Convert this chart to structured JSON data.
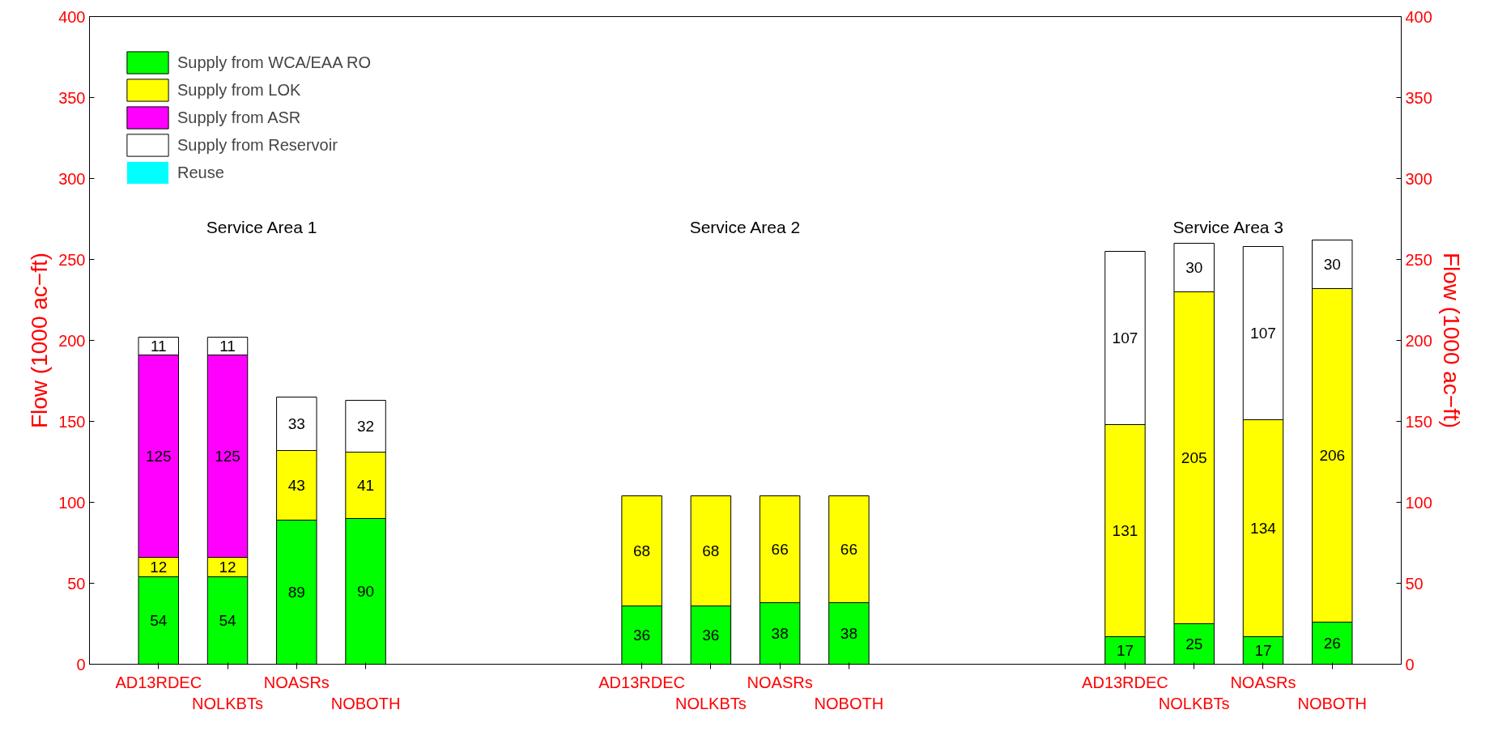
{
  "chart_data": {
    "type": "bar",
    "stacked": true,
    "categories": [
      "AD13RDEC",
      "NOLKBTs",
      "NOASRs",
      "NOBOTH",
      null,
      null,
      null,
      "AD13RDEC",
      "NOLKBTs",
      "NOASRs",
      "NOBOTH",
      null,
      null,
      null,
      "AD13RDEC",
      "NOLKBTs",
      "NOASRs",
      "NOBOTH"
    ],
    "series": [
      {
        "name": "Supply from WCA/EAA RO",
        "color": "#00ff00",
        "values": [
          54,
          54,
          89,
          90,
          null,
          null,
          null,
          36,
          36,
          38,
          38,
          null,
          null,
          null,
          17,
          25,
          17,
          26
        ],
        "value_labels": [
          "54",
          "54",
          "89",
          "90",
          null,
          null,
          null,
          "36",
          "36",
          "38",
          "38",
          null,
          null,
          null,
          "17",
          "25",
          "17",
          "26"
        ]
      },
      {
        "name": "Supply from LOK",
        "color": "#ffff00",
        "values": [
          12,
          12,
          43,
          41,
          null,
          null,
          null,
          68,
          68,
          66,
          66,
          null,
          null,
          null,
          131,
          205,
          134,
          206
        ],
        "value_labels": [
          "12",
          "12",
          "43",
          "41",
          null,
          null,
          null,
          "68",
          "68",
          "66",
          "66",
          null,
          null,
          null,
          "131",
          "205",
          "134",
          "206"
        ]
      },
      {
        "name": "Supply from ASR",
        "color": "#ff00ff",
        "values": [
          125,
          125,
          0,
          0,
          null,
          null,
          null,
          0,
          0,
          0,
          0,
          null,
          null,
          null,
          0,
          0,
          0,
          0
        ],
        "value_labels": [
          "125",
          "125",
          null,
          null,
          null,
          null,
          null,
          null,
          null,
          null,
          null,
          null,
          null,
          null,
          null,
          null,
          null,
          null
        ]
      },
      {
        "name": "Supply from Reservoir",
        "color": "#ffffff",
        "values": [
          11,
          11,
          33,
          32,
          null,
          null,
          null,
          0,
          0,
          0,
          0,
          null,
          null,
          null,
          107,
          30,
          107,
          30
        ],
        "value_labels": [
          "11",
          "11",
          "33",
          "32",
          null,
          null,
          null,
          null,
          null,
          null,
          null,
          null,
          null,
          null,
          "107",
          "30",
          "107",
          "30"
        ]
      },
      {
        "name": "Reuse",
        "color": "#00ffff",
        "values": [
          0,
          0,
          0,
          0,
          null,
          null,
          null,
          0,
          0,
          0,
          0,
          null,
          null,
          null,
          0,
          0,
          0,
          0
        ]
      }
    ],
    "annotations": [
      "Service Area 1",
      "Service Area 2",
      "Service Area 3"
    ],
    "ylabel": "Flow (1000 ac−ft)",
    "y2label": "Flow (1000 ac−ft)",
    "ylim": [
      0,
      400
    ],
    "yticks": [
      0,
      50,
      100,
      150,
      200,
      250,
      300,
      350,
      400
    ],
    "y2lim": [
      0,
      400
    ],
    "y2ticks": [
      0,
      50,
      100,
      150,
      200,
      250,
      300,
      350,
      400
    ],
    "grid": false,
    "legend": "top left"
  }
}
